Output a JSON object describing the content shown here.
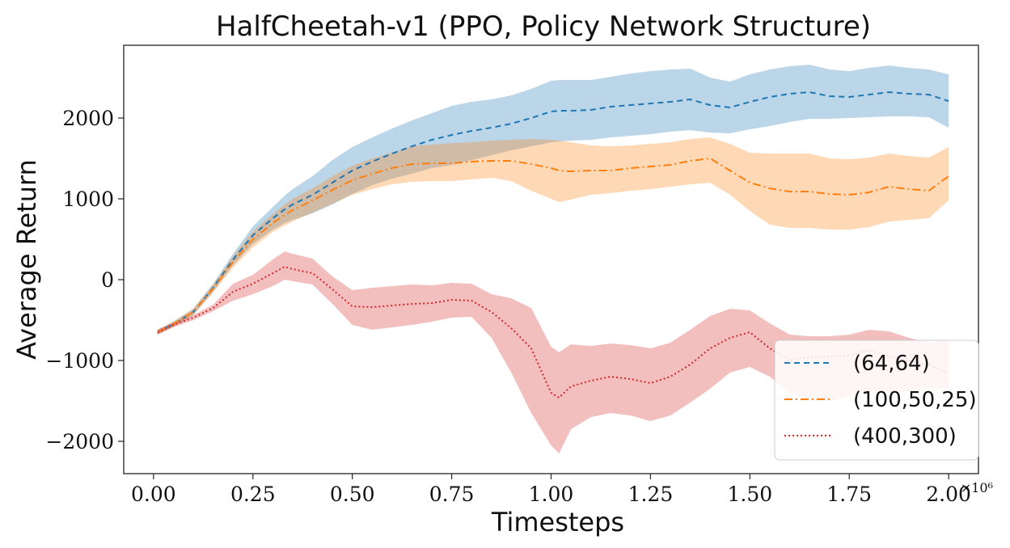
{
  "chart_data": {
    "type": "line",
    "title": "HalfCheetah-v1 (PPO, Policy Network Structure)",
    "xlabel": "Timesteps",
    "ylabel": "Average Return",
    "x_offset_label": "×10⁶",
    "xlim": [
      -0.075,
      2.075
    ],
    "ylim": [
      -2400,
      2900
    ],
    "xticks": [
      0.0,
      0.25,
      0.5,
      0.75,
      1.0,
      1.25,
      1.5,
      1.75,
      2.0
    ],
    "xtick_labels": [
      "0.00",
      "0.25",
      "0.50",
      "0.75",
      "1.00",
      "1.25",
      "1.50",
      "1.75",
      "2.00"
    ],
    "yticks": [
      -2000,
      -1000,
      0,
      1000,
      2000
    ],
    "ytick_labels": [
      "−2000",
      "−1000",
      "0",
      "1000",
      "2000"
    ],
    "legend_position": "lower-right",
    "x": [
      0.01,
      0.05,
      0.1,
      0.15,
      0.2,
      0.25,
      0.3,
      0.33,
      0.35,
      0.4,
      0.45,
      0.5,
      0.55,
      0.6,
      0.65,
      0.7,
      0.75,
      0.8,
      0.85,
      0.9,
      0.95,
      1.0,
      1.02,
      1.05,
      1.1,
      1.15,
      1.2,
      1.25,
      1.3,
      1.35,
      1.4,
      1.45,
      1.5,
      1.55,
      1.6,
      1.65,
      1.7,
      1.75,
      1.8,
      1.85,
      1.9,
      1.95,
      2.0
    ],
    "series": [
      {
        "name": "(64,64)",
        "color": "#1f77b4",
        "band_color": "#1f77b4",
        "dash": "7,5",
        "values": [
          -650,
          -550,
          -400,
          -100,
          250,
          550,
          760,
          870,
          930,
          1050,
          1200,
          1350,
          1460,
          1560,
          1650,
          1730,
          1790,
          1840,
          1880,
          1930,
          2000,
          2080,
          2090,
          2090,
          2100,
          2140,
          2160,
          2180,
          2200,
          2230,
          2160,
          2130,
          2200,
          2260,
          2300,
          2320,
          2270,
          2260,
          2290,
          2320,
          2300,
          2290,
          2210
        ],
        "lower": [
          -680,
          -580,
          -440,
          -150,
          180,
          440,
          620,
          700,
          740,
          820,
          930,
          1060,
          1170,
          1250,
          1310,
          1380,
          1420,
          1480,
          1540,
          1600,
          1650,
          1700,
          1710,
          1720,
          1730,
          1760,
          1780,
          1800,
          1830,
          1850,
          1820,
          1810,
          1860,
          1900,
          1950,
          1990,
          1990,
          2000,
          2010,
          2020,
          2020,
          2010,
          1880
        ],
        "upper": [
          -620,
          -520,
          -360,
          -50,
          320,
          660,
          900,
          1040,
          1120,
          1280,
          1480,
          1640,
          1760,
          1870,
          1970,
          2060,
          2150,
          2200,
          2230,
          2280,
          2360,
          2460,
          2470,
          2470,
          2470,
          2510,
          2550,
          2580,
          2600,
          2610,
          2500,
          2450,
          2540,
          2600,
          2640,
          2660,
          2600,
          2580,
          2620,
          2650,
          2620,
          2600,
          2540
        ]
      },
      {
        "name": "(100,50,25)",
        "color": "#ff7f0e",
        "band_color": "#ff7f0e",
        "dash": "10,4,2,4",
        "values": [
          -650,
          -550,
          -400,
          -110,
          220,
          500,
          700,
          800,
          860,
          980,
          1110,
          1230,
          1310,
          1380,
          1430,
          1440,
          1440,
          1460,
          1470,
          1470,
          1430,
          1380,
          1350,
          1340,
          1350,
          1350,
          1380,
          1400,
          1420,
          1470,
          1500,
          1350,
          1200,
          1130,
          1090,
          1090,
          1060,
          1050,
          1080,
          1150,
          1120,
          1100,
          1280
        ],
        "lower": [
          -680,
          -580,
          -440,
          -160,
          150,
          400,
          590,
          670,
          720,
          830,
          940,
          1050,
          1120,
          1180,
          1210,
          1220,
          1220,
          1240,
          1260,
          1220,
          1100,
          1000,
          960,
          990,
          1050,
          1070,
          1100,
          1120,
          1150,
          1180,
          1200,
          1050,
          850,
          680,
          640,
          640,
          620,
          620,
          650,
          720,
          740,
          760,
          980
        ],
        "upper": [
          -620,
          -520,
          -360,
          -60,
          290,
          600,
          810,
          930,
          1000,
          1130,
          1280,
          1410,
          1500,
          1570,
          1650,
          1670,
          1690,
          1700,
          1720,
          1730,
          1740,
          1730,
          1720,
          1700,
          1660,
          1650,
          1660,
          1680,
          1700,
          1740,
          1760,
          1680,
          1570,
          1560,
          1560,
          1560,
          1500,
          1490,
          1510,
          1560,
          1530,
          1510,
          1640
        ]
      },
      {
        "name": "(400,300)",
        "color": "#d62728",
        "band_color": "#d62728",
        "dash": "2,3",
        "values": [
          -650,
          -560,
          -470,
          -350,
          -150,
          -50,
          80,
          160,
          130,
          80,
          -120,
          -330,
          -340,
          -320,
          -300,
          -290,
          -250,
          -260,
          -400,
          -600,
          -850,
          -1400,
          -1460,
          -1320,
          -1250,
          -1200,
          -1230,
          -1280,
          -1200,
          -1050,
          -850,
          -720,
          -650,
          -850,
          -1000,
          -960,
          -950,
          -940,
          -870,
          -950,
          -1010,
          -1050,
          -1160
        ],
        "lower": [
          -680,
          -590,
          -500,
          -390,
          -260,
          -180,
          -80,
          0,
          -20,
          -60,
          -300,
          -560,
          -620,
          -590,
          -560,
          -520,
          -470,
          -460,
          -720,
          -1150,
          -1650,
          -2050,
          -2150,
          -1850,
          -1700,
          -1650,
          -1680,
          -1750,
          -1680,
          -1520,
          -1350,
          -1150,
          -1080,
          -1200,
          -1400,
          -1480,
          -1500,
          -1450,
          -1380,
          -1400,
          -1380,
          -1350,
          -1350
        ],
        "upper": [
          -620,
          -530,
          -440,
          -310,
          -50,
          60,
          250,
          350,
          320,
          260,
          40,
          -130,
          -100,
          -80,
          -60,
          -70,
          -40,
          -50,
          -180,
          -230,
          -350,
          -830,
          -900,
          -800,
          -820,
          -790,
          -810,
          -850,
          -780,
          -620,
          -450,
          -360,
          -380,
          -540,
          -680,
          -700,
          -700,
          -680,
          -620,
          -640,
          -720,
          -780,
          -750
        ]
      }
    ]
  }
}
